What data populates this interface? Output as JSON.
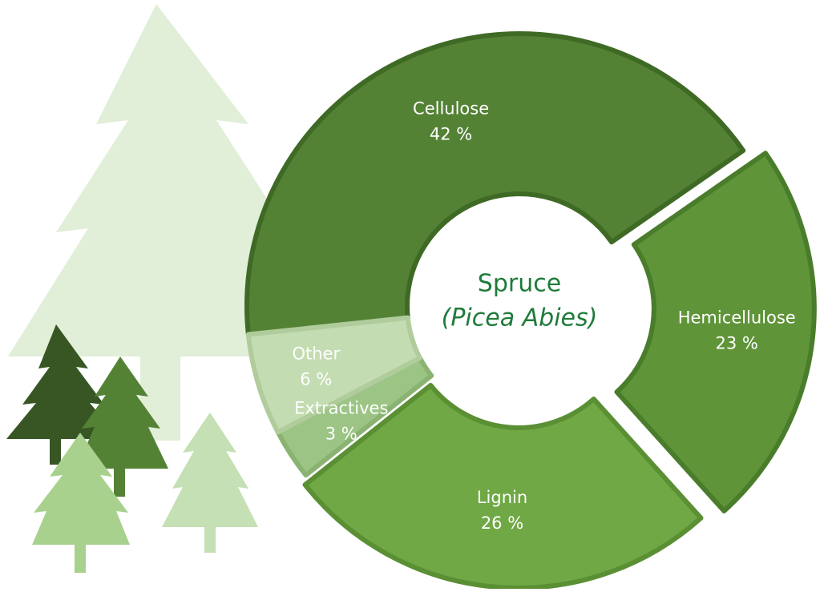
{
  "chart_data": {
    "type": "donut",
    "title": "Spruce",
    "subtitle": "(Picea Abies)",
    "categories": [
      "Cellulose",
      "Hemicellulose",
      "Lignin",
      "Extractives",
      "Other"
    ],
    "values": [
      42,
      23,
      26,
      3,
      6
    ],
    "value_labels": [
      "42 %",
      "23 %",
      "26 %",
      "3 %",
      "6 %"
    ],
    "colors": [
      "#548235",
      "#5f9439",
      "#70a845",
      "#9cc585",
      "#c3dcb1"
    ]
  }
}
